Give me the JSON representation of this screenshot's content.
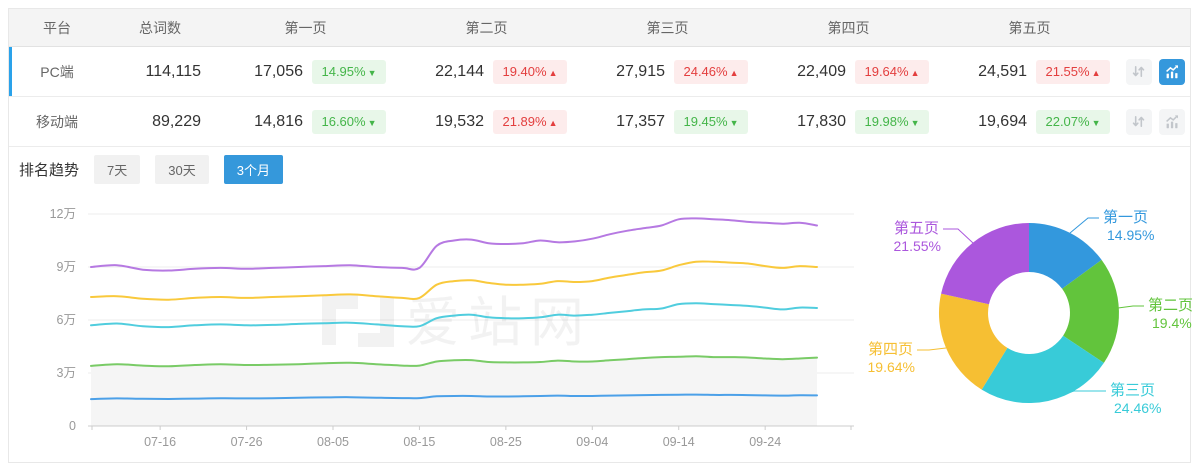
{
  "table": {
    "columns": [
      "平台",
      "总词数",
      "第一页",
      "第二页",
      "第三页",
      "第四页",
      "第五页"
    ],
    "icons": {
      "sort": "sort-arrows-icon",
      "chart": "bar-chart-icon"
    },
    "rows": [
      {
        "platform": "PC端",
        "total": "114,115",
        "selected": true,
        "pages": [
          {
            "value": "17,056",
            "change": "14.95%",
            "dir": "down"
          },
          {
            "value": "22,144",
            "change": "19.40%",
            "dir": "up"
          },
          {
            "value": "27,915",
            "change": "24.46%",
            "dir": "up"
          },
          {
            "value": "22,409",
            "change": "19.64%",
            "dir": "up"
          },
          {
            "value": "24,591",
            "change": "21.55%",
            "dir": "up"
          }
        ]
      },
      {
        "platform": "移动端",
        "total": "89,229",
        "selected": false,
        "pages": [
          {
            "value": "14,816",
            "change": "16.60%",
            "dir": "down"
          },
          {
            "value": "19,532",
            "change": "21.89%",
            "dir": "up"
          },
          {
            "value": "17,357",
            "change": "19.45%",
            "dir": "down"
          },
          {
            "value": "17,830",
            "change": "19.98%",
            "dir": "down"
          },
          {
            "value": "19,694",
            "change": "22.07%",
            "dir": "down"
          }
        ]
      }
    ]
  },
  "trend": {
    "label": "排名趋势",
    "ranges": [
      {
        "label": "7天",
        "active": false
      },
      {
        "label": "30天",
        "active": false
      },
      {
        "label": "3个月",
        "active": true
      }
    ]
  },
  "watermark": "爱站网",
  "colors": {
    "accent_blue": "#3598db",
    "selected_row_bar": "#2aa2ea",
    "badge_up_text": "#e33e3e",
    "badge_up_bg": "#fdecec",
    "badge_down_text": "#44b549",
    "badge_down_bg": "#e8f7e9",
    "grid": "#ededed",
    "axis": "#cccccc",
    "axis_label": "#999999",
    "area_fill": "#f5f5f5"
  },
  "chart_data": [
    {
      "type": "line",
      "title": "排名趋势（3个月）",
      "stacked": true,
      "unit": "万 (10,000 keywords, cumulative by page)",
      "x_ticks": [
        "07-16",
        "07-26",
        "08-05",
        "08-15",
        "08-25",
        "09-04",
        "09-14",
        "09-24"
      ],
      "x_tick_days": [
        8,
        18,
        28,
        38,
        48,
        58,
        68,
        78
      ],
      "x_range_days": [
        0,
        86
      ],
      "y_ticks": [
        {
          "value": 0,
          "label": "0"
        },
        {
          "value": 3,
          "label": "3万"
        },
        {
          "value": 6,
          "label": "6万"
        },
        {
          "value": 9,
          "label": "9万"
        },
        {
          "value": 12,
          "label": "12万"
        }
      ],
      "ylim": [
        0,
        12
      ],
      "days": [
        0,
        3,
        6,
        9,
        12,
        15,
        18,
        21,
        24,
        27,
        30,
        33,
        36,
        38,
        40,
        42,
        44,
        46,
        48,
        50,
        52,
        54,
        56,
        58,
        60,
        62,
        64,
        66,
        68,
        70,
        72,
        74,
        76,
        78,
        80,
        82,
        84
      ],
      "series": [
        {
          "name": "第一页",
          "color": "#4ba0e8",
          "area": true,
          "values": [
            1.52,
            1.56,
            1.54,
            1.53,
            1.55,
            1.57,
            1.56,
            1.57,
            1.6,
            1.62,
            1.63,
            1.6,
            1.58,
            1.58,
            1.68,
            1.7,
            1.7,
            1.67,
            1.67,
            1.68,
            1.7,
            1.72,
            1.7,
            1.7,
            1.72,
            1.73,
            1.75,
            1.76,
            1.77,
            1.78,
            1.76,
            1.76,
            1.75,
            1.73,
            1.72,
            1.74,
            1.73
          ]
        },
        {
          "name": "第二页",
          "color": "#79cb66",
          "area": true,
          "values": [
            3.4,
            3.5,
            3.42,
            3.38,
            3.45,
            3.5,
            3.45,
            3.47,
            3.5,
            3.55,
            3.58,
            3.5,
            3.42,
            3.42,
            3.65,
            3.72,
            3.73,
            3.62,
            3.6,
            3.6,
            3.62,
            3.7,
            3.65,
            3.65,
            3.72,
            3.78,
            3.85,
            3.9,
            3.92,
            3.95,
            3.9,
            3.9,
            3.88,
            3.82,
            3.78,
            3.82,
            3.87
          ]
        },
        {
          "name": "第三页",
          "color": "#50cdde",
          "area": false,
          "values": [
            5.7,
            5.8,
            5.65,
            5.6,
            5.7,
            5.75,
            5.7,
            5.72,
            5.78,
            5.82,
            5.85,
            5.75,
            5.65,
            5.65,
            6.1,
            6.25,
            6.3,
            6.15,
            6.1,
            6.1,
            6.15,
            6.3,
            6.25,
            6.3,
            6.4,
            6.5,
            6.6,
            6.65,
            6.9,
            6.95,
            6.9,
            6.85,
            6.8,
            6.7,
            6.6,
            6.7,
            6.68
          ]
        },
        {
          "name": "第四页",
          "color": "#f9c93c",
          "area": false,
          "values": [
            7.3,
            7.35,
            7.2,
            7.15,
            7.25,
            7.3,
            7.25,
            7.3,
            7.35,
            7.4,
            7.45,
            7.35,
            7.25,
            7.25,
            8.0,
            8.2,
            8.25,
            8.1,
            8.0,
            8.0,
            8.05,
            8.2,
            8.15,
            8.2,
            8.4,
            8.55,
            8.7,
            8.8,
            9.1,
            9.3,
            9.3,
            9.25,
            9.2,
            9.05,
            8.95,
            9.05,
            9.0
          ]
        },
        {
          "name": "第五页",
          "color": "#b679e2",
          "area": false,
          "values": [
            9.0,
            9.1,
            8.85,
            8.8,
            8.9,
            8.95,
            8.9,
            8.95,
            9.0,
            9.05,
            9.1,
            9.0,
            8.95,
            8.95,
            10.2,
            10.5,
            10.55,
            10.35,
            10.3,
            10.35,
            10.5,
            10.4,
            10.45,
            10.6,
            10.85,
            11.05,
            11.2,
            11.35,
            11.7,
            11.75,
            11.7,
            11.65,
            11.55,
            11.5,
            11.45,
            11.5,
            11.35
          ]
        }
      ]
    },
    {
      "type": "pie",
      "donut": true,
      "labels": [
        "第一页",
        "第二页",
        "第三页",
        "第四页",
        "第五页"
      ],
      "values": [
        14.95,
        19.4,
        24.46,
        19.64,
        21.55
      ],
      "value_labels": [
        "14.95%",
        "19.4%",
        "24.46%",
        "19.64%",
        "21.55%"
      ],
      "colors": [
        "#3398dd",
        "#62c43c",
        "#38cbd8",
        "#f6bf33",
        "#ab57dd"
      ],
      "start_angle": "top",
      "direction": "clockwise"
    }
  ]
}
